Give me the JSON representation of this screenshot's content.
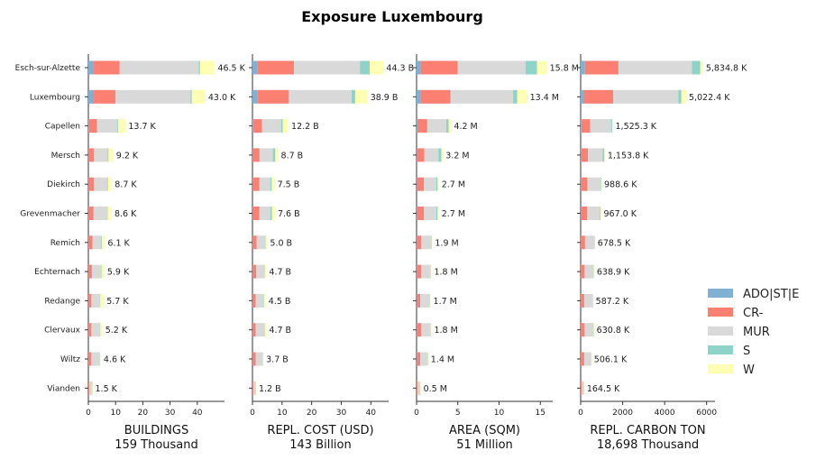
{
  "chart_data": {
    "type": "bar",
    "orientation": "horizontal",
    "stacked": true,
    "title": "Exposure Luxembourg",
    "categories": [
      "Esch-sur-Alzette",
      "Luxembourg",
      "Capellen",
      "Mersch",
      "Diekirch",
      "Grevenmacher",
      "Remich",
      "Echternach",
      "Redange",
      "Clervaux",
      "Wiltz",
      "Vianden"
    ],
    "legend": {
      "position": "right",
      "items": [
        {
          "name": "ADO|ST|E",
          "color": "#80b1d3"
        },
        {
          "name": "CR-",
          "color": "#fb8072"
        },
        {
          "name": "MUR",
          "color": "#d9d9d9"
        },
        {
          "name": "S",
          "color": "#8dd3c7"
        },
        {
          "name": "W",
          "color": "#ffffb3"
        }
      ]
    },
    "panels": [
      {
        "xlabel": "BUILDINGS",
        "subtitle": "159 Thousand",
        "xlim": [
          0,
          50
        ],
        "xticks": [
          "0",
          "10",
          "20",
          "30",
          "40"
        ],
        "xtick_values": [
          0,
          10,
          20,
          30,
          40
        ],
        "totals": [
          46.5,
          43.0,
          13.7,
          9.2,
          8.7,
          8.6,
          6.1,
          5.9,
          5.7,
          5.2,
          4.6,
          1.5
        ],
        "total_labels": [
          "46.5 K",
          "43.0 K",
          "13.7 K",
          "9.2 K",
          "8.7 K",
          "8.6 K",
          "6.1 K",
          "5.9 K",
          "5.7 K",
          "5.2 K",
          "4.6 K",
          "1.5 K"
        ],
        "segments": [
          [
            2.0,
            9.5,
            29.0,
            0.5,
            5.5
          ],
          [
            2.0,
            8.0,
            27.5,
            0.5,
            5.0
          ],
          [
            0.2,
            3.0,
            7.5,
            0.3,
            2.7
          ],
          [
            0.1,
            2.0,
            5.0,
            0.3,
            1.8
          ],
          [
            0.1,
            2.0,
            4.8,
            0.3,
            1.5
          ],
          [
            0.1,
            1.8,
            5.0,
            0.2,
            1.5
          ],
          [
            0.1,
            1.4,
            3.3,
            0.2,
            1.1
          ],
          [
            0.1,
            1.2,
            3.3,
            0.2,
            1.1
          ],
          [
            0.1,
            1.0,
            3.1,
            0.2,
            1.3
          ],
          [
            0.1,
            1.0,
            3.1,
            0.2,
            0.8
          ],
          [
            0.1,
            1.0,
            3.0,
            0.1,
            0.4
          ],
          [
            0.05,
            0.3,
            1.0,
            0.05,
            0.1
          ]
        ]
      },
      {
        "xlabel": "REPL. COST (USD)",
        "subtitle": "143 Billion",
        "xlim": [
          0,
          46
        ],
        "xticks": [
          "0",
          "10",
          "20",
          "30",
          "40"
        ],
        "xtick_values": [
          0,
          10,
          20,
          30,
          40
        ],
        "totals": [
          44.3,
          38.9,
          12.2,
          8.7,
          7.5,
          7.6,
          5.0,
          4.7,
          4.5,
          4.7,
          3.7,
          1.2
        ],
        "total_labels": [
          "44.3 B",
          "38.9 B",
          "12.2 B",
          "8.7 B",
          "7.5 B",
          "7.6 B",
          "5.0 B",
          "4.7 B",
          "4.5 B",
          "4.7 B",
          "3.7 B",
          "1.2 B"
        ],
        "segments": [
          [
            1.8,
            12.2,
            22.3,
            3.3,
            4.7
          ],
          [
            1.8,
            10.5,
            21.2,
            1.2,
            4.2
          ],
          [
            0.2,
            3.0,
            6.5,
            0.5,
            2.0
          ],
          [
            0.1,
            2.3,
            4.5,
            0.8,
            1.0
          ],
          [
            0.1,
            2.2,
            3.8,
            0.4,
            1.0
          ],
          [
            0.1,
            2.2,
            3.8,
            0.5,
            1.0
          ],
          [
            0.1,
            1.3,
            2.8,
            0.2,
            0.6
          ],
          [
            0.1,
            1.2,
            2.6,
            0.2,
            0.6
          ],
          [
            0.1,
            1.0,
            2.6,
            0.2,
            0.6
          ],
          [
            0.1,
            1.0,
            2.8,
            0.2,
            0.6
          ],
          [
            0.1,
            1.0,
            2.3,
            0.1,
            0.2
          ],
          [
            0.05,
            0.3,
            0.8,
            0.03,
            0.02
          ]
        ]
      },
      {
        "xlabel": "AREA (SQM)",
        "subtitle": "51 Million",
        "xlim": [
          0,
          16.5
        ],
        "xticks": [
          "0",
          "5",
          "10",
          "15"
        ],
        "xtick_values": [
          0,
          5,
          10,
          15
        ],
        "totals": [
          15.8,
          13.4,
          4.2,
          3.2,
          2.7,
          2.7,
          1.9,
          1.8,
          1.7,
          1.8,
          1.4,
          0.5
        ],
        "total_labels": [
          "15.8 M",
          "13.4 M",
          "4.2 M",
          "3.2 M",
          "2.7 M",
          "2.7 M",
          "1.9 M",
          "1.8 M",
          "1.7 M",
          "1.8 M",
          "1.4 M",
          "0.5 M"
        ],
        "segments": [
          [
            0.5,
            4.5,
            8.2,
            1.4,
            1.2
          ],
          [
            0.5,
            3.6,
            7.6,
            0.5,
            1.2
          ],
          [
            0.1,
            1.2,
            2.3,
            0.3,
            0.3
          ],
          [
            0.05,
            0.9,
            1.7,
            0.35,
            0.2
          ],
          [
            0.05,
            0.85,
            1.5,
            0.15,
            0.15
          ],
          [
            0.05,
            0.85,
            1.5,
            0.15,
            0.15
          ],
          [
            0.05,
            0.5,
            1.2,
            0.05,
            0.1
          ],
          [
            0.05,
            0.5,
            1.1,
            0.05,
            0.1
          ],
          [
            0.05,
            0.4,
            1.1,
            0.05,
            0.1
          ],
          [
            0.05,
            0.5,
            1.1,
            0.05,
            0.1
          ],
          [
            0.05,
            0.4,
            0.85,
            0.05,
            0.05
          ],
          [
            0.02,
            0.1,
            0.3,
            0.03,
            0.05
          ]
        ]
      },
      {
        "xlabel": "REPL. CARBON TON",
        "subtitle": "18,698 Thousand",
        "xlim": [
          0,
          6400
        ],
        "xticks": [
          "0",
          "2000",
          "4000",
          "6000"
        ],
        "xtick_values": [
          0,
          2000,
          4000,
          6000
        ],
        "totals": [
          5834.8,
          5022.4,
          1525.3,
          1153.8,
          988.6,
          967.0,
          678.5,
          638.9,
          587.2,
          630.8,
          506.1,
          164.5
        ],
        "total_labels": [
          "5,834.8 K",
          "5,022.4 K",
          "1,525.3 K",
          "1,153.8 K",
          "988.6 K",
          "967.0 K",
          "678.5 K",
          "638.9 K",
          "587.2 K",
          "630.8 K",
          "506.1 K",
          "164.5 K"
        ],
        "segments": [
          [
            200,
            1600,
            3500,
            400,
            134.8
          ],
          [
            150,
            1400,
            3100,
            150,
            222.4
          ],
          [
            30,
            420,
            1000,
            50,
            25.3
          ],
          [
            20,
            330,
            700,
            80,
            23.8
          ],
          [
            20,
            300,
            620,
            30,
            18.6
          ],
          [
            20,
            280,
            620,
            30,
            17.0
          ],
          [
            10,
            200,
            440,
            15,
            13.5
          ],
          [
            10,
            180,
            420,
            15,
            13.9
          ],
          [
            10,
            160,
            390,
            15,
            12.2
          ],
          [
            10,
            180,
            410,
            15,
            15.8
          ],
          [
            10,
            160,
            320,
            10,
            6.1
          ],
          [
            5,
            50,
            100,
            5,
            4.5
          ]
        ]
      }
    ]
  }
}
